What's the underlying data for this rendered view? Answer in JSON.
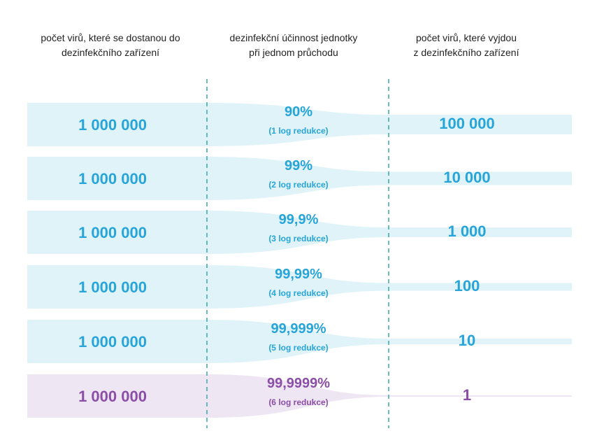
{
  "headers": {
    "input": [
      "počet virů, které se dostanou do",
      "dezinfekčního zařízení"
    ],
    "efficiency": [
      "dezinfekční účinnost jednotky",
      "při jednom průchodu"
    ],
    "output": [
      "počet virů, které vyjdou",
      "z dezinfekčního zařízení"
    ]
  },
  "colors": {
    "blue_text": "#27a4d8",
    "blue_band": "#dff3f9",
    "purple_text": "#8b4ea6",
    "purple_band": "#efe6f4",
    "divider": "#3aa6a6"
  },
  "rows": [
    {
      "input": "1 000 000",
      "efficiency": "90%",
      "log": "(1 log redukce)",
      "output": "100 000",
      "output_fraction": 0.1,
      "theme": "blue"
    },
    {
      "input": "1 000 000",
      "efficiency": "99%",
      "log": "(2 log redukce)",
      "output": "10 000",
      "output_fraction": 0.01,
      "theme": "blue"
    },
    {
      "input": "1 000 000",
      "efficiency": "99,9%",
      "log": "(3 log redukce)",
      "output": "1 000",
      "output_fraction": 0.001,
      "theme": "blue"
    },
    {
      "input": "1 000 000",
      "efficiency": "99,99%",
      "log": "(4 log redukce)",
      "output": "100",
      "output_fraction": 0.0001,
      "theme": "blue"
    },
    {
      "input": "1 000 000",
      "efficiency": "99,999%",
      "log": "(5 log redukce)",
      "output": "10",
      "output_fraction": 1e-05,
      "theme": "blue"
    },
    {
      "input": "1 000 000",
      "efficiency": "99,9999%",
      "log": "(6 log redukce)",
      "output": "1",
      "output_fraction": 1e-06,
      "theme": "purple"
    }
  ]
}
